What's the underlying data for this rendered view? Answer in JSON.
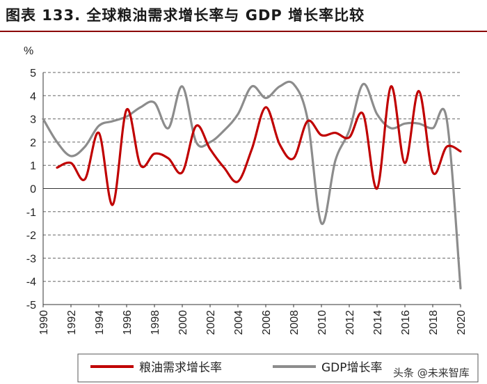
{
  "title": "图表 133. 全球粮油需求增长率与 GDP 增长率比较",
  "watermark": "头条 @未来智库",
  "chart_data": {
    "type": "line",
    "ylabel": "%",
    "ylim": [
      -5,
      5
    ],
    "yticks": [
      5,
      4,
      3,
      2,
      1,
      0,
      -1,
      -2,
      -3,
      -4,
      -5
    ],
    "xlim": [
      1990,
      2020
    ],
    "xticks": [
      "1990",
      "1992",
      "1994",
      "1996",
      "1998",
      "2000",
      "2002",
      "2004",
      "2006",
      "2008",
      "2010",
      "2012",
      "2014",
      "2016",
      "2018",
      "2020"
    ],
    "grid": true,
    "legend_position": "bottom",
    "series": [
      {
        "name": "粮油需求增长率",
        "color": "#c00000",
        "x": [
          1991,
          1992,
          1993,
          1994,
          1995,
          1996,
          1997,
          1998,
          1999,
          2000,
          2001,
          2002,
          2003,
          2004,
          2005,
          2006,
          2007,
          2008,
          2009,
          2010,
          2011,
          2012,
          2013,
          2014,
          2015,
          2016,
          2017,
          2018,
          2019,
          2020
        ],
        "y": [
          0.9,
          1.1,
          0.4,
          2.4,
          -0.7,
          3.4,
          1.0,
          1.5,
          1.3,
          0.7,
          2.7,
          1.7,
          0.9,
          0.3,
          1.7,
          3.5,
          1.9,
          1.3,
          2.9,
          2.3,
          2.4,
          2.2,
          3.2,
          0.0,
          4.4,
          1.1,
          4.2,
          0.7,
          1.8,
          1.6
        ]
      },
      {
        "name": "GDP增长率",
        "color": "#8c8c8c",
        "x": [
          1990,
          1991,
          1992,
          1993,
          1994,
          1995,
          1996,
          1997,
          1998,
          1999,
          2000,
          2001,
          2002,
          2003,
          2004,
          2005,
          2006,
          2007,
          2008,
          2009,
          2010,
          2011,
          2012,
          2013,
          2014,
          2015,
          2016,
          2017,
          2018,
          2019,
          2020
        ],
        "y": [
          3.0,
          2.0,
          1.4,
          1.8,
          2.7,
          2.9,
          3.1,
          3.5,
          3.7,
          2.6,
          4.4,
          2.0,
          2.0,
          2.5,
          3.2,
          4.4,
          3.9,
          4.4,
          4.5,
          3.0,
          -1.5,
          1.2,
          2.5,
          4.5,
          3.2,
          2.6,
          2.8,
          2.8,
          2.6,
          3.0,
          -4.3
        ]
      }
    ]
  }
}
